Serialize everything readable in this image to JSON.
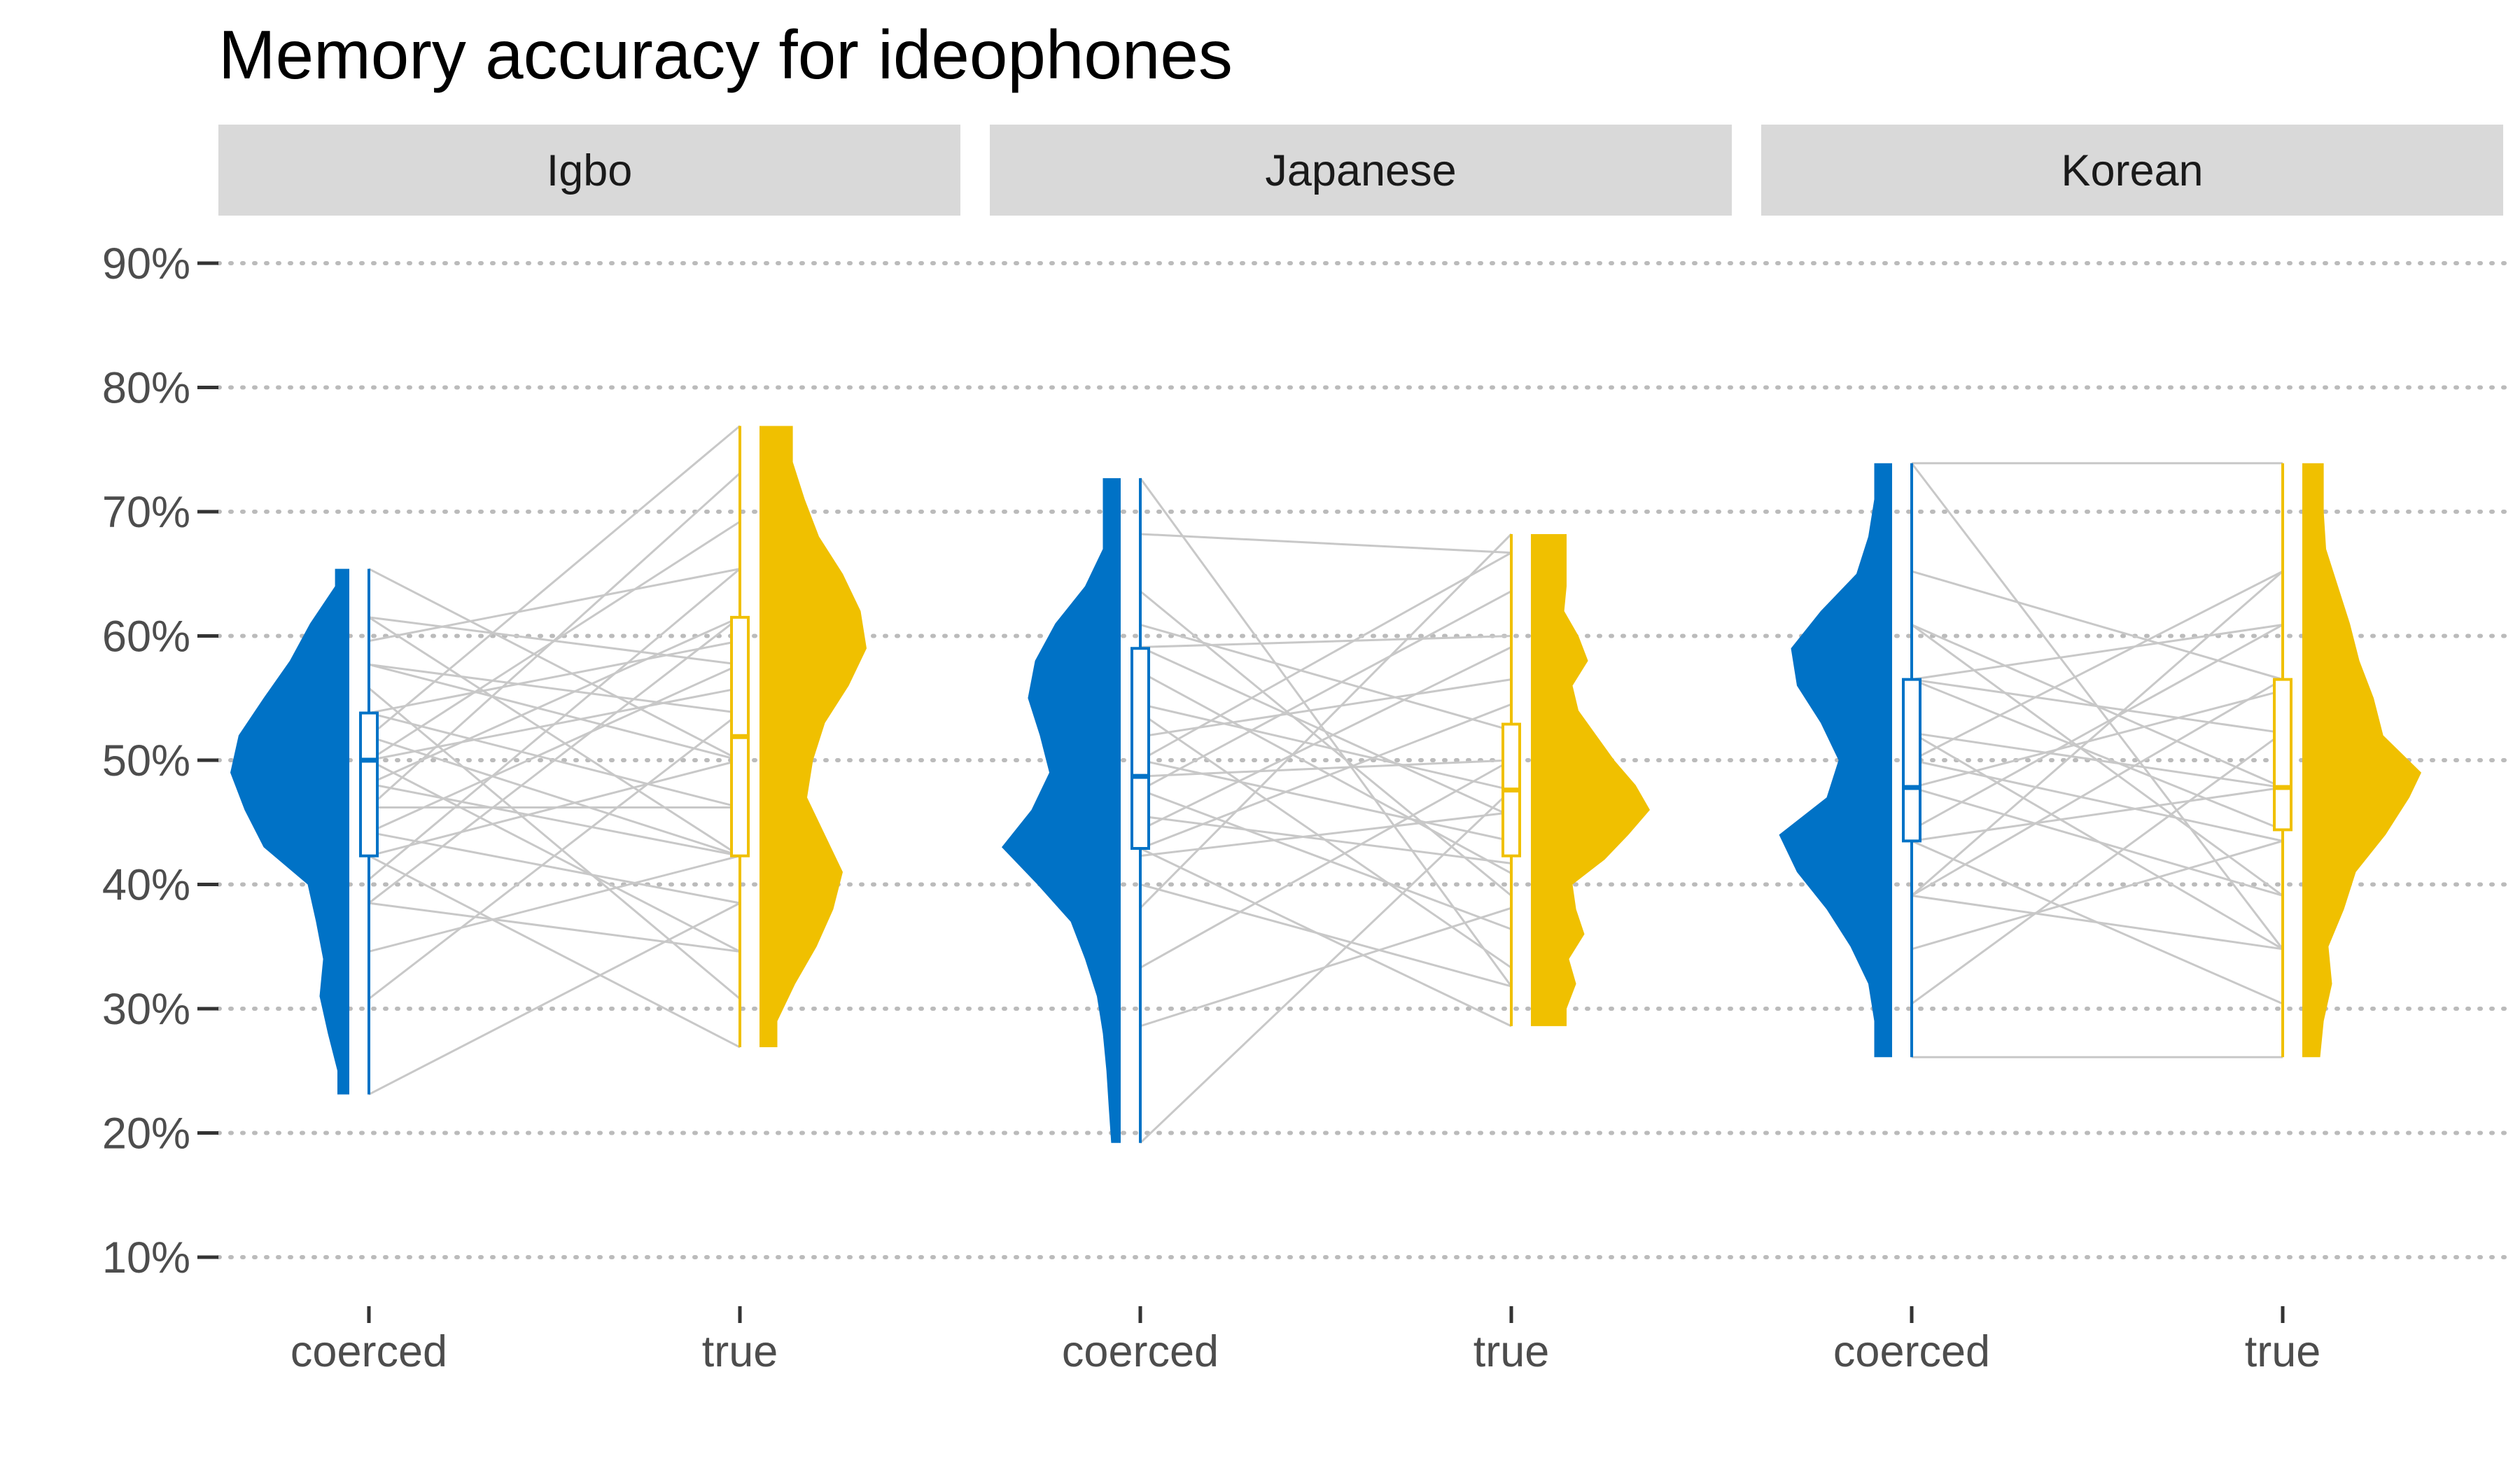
{
  "chart_data": {
    "type": "raincloud",
    "title": "Memory accuracy for ideophones",
    "xlabel": "",
    "ylabel": "",
    "ylim": [
      0.1,
      0.9
    ],
    "y_ticks": [
      0.1,
      0.2,
      0.3,
      0.4,
      0.5,
      0.6,
      0.7,
      0.8,
      0.9
    ],
    "y_tick_labels": [
      "10%",
      "20%",
      "30%",
      "40%",
      "50%",
      "60%",
      "70%",
      "80%",
      "90%"
    ],
    "grid": "horizontal dotted",
    "categories": [
      "coerced",
      "true"
    ],
    "colors": {
      "coerced": "#0072C6",
      "true": "#F0C000",
      "lines": "#c8c8c8",
      "strip": "#d9d9d9",
      "grid": "#bbbbbb"
    },
    "panels": [
      {
        "label": "Igbo",
        "coerced": {
          "min": 0.231,
          "q1": 0.423,
          "median": 0.5,
          "q3": 0.538,
          "max": 0.654,
          "density": [
            [
              0.231,
              0.1
            ],
            [
              0.25,
              0.1
            ],
            [
              0.28,
              0.18
            ],
            [
              0.31,
              0.25
            ],
            [
              0.34,
              0.22
            ],
            [
              0.37,
              0.28
            ],
            [
              0.4,
              0.35
            ],
            [
              0.43,
              0.72
            ],
            [
              0.46,
              0.88
            ],
            [
              0.49,
              1.0
            ],
            [
              0.52,
              0.93
            ],
            [
              0.55,
              0.72
            ],
            [
              0.58,
              0.5
            ],
            [
              0.61,
              0.33
            ],
            [
              0.64,
              0.12
            ],
            [
              0.654,
              0.12
            ]
          ]
        },
        "true": {
          "min": 0.269,
          "q1": 0.423,
          "median": 0.519,
          "q3": 0.615,
          "max": 0.769,
          "density": [
            [
              0.269,
              0.15
            ],
            [
              0.29,
              0.15
            ],
            [
              0.32,
              0.3
            ],
            [
              0.35,
              0.48
            ],
            [
              0.38,
              0.62
            ],
            [
              0.41,
              0.7
            ],
            [
              0.44,
              0.55
            ],
            [
              0.47,
              0.4
            ],
            [
              0.5,
              0.45
            ],
            [
              0.53,
              0.55
            ],
            [
              0.56,
              0.75
            ],
            [
              0.59,
              0.9
            ],
            [
              0.62,
              0.85
            ],
            [
              0.65,
              0.7
            ],
            [
              0.68,
              0.5
            ],
            [
              0.71,
              0.38
            ],
            [
              0.74,
              0.28
            ],
            [
              0.769,
              0.28
            ]
          ]
        },
        "pairs": [
          [
            0.231,
            0.385
          ],
          [
            0.308,
            0.538
          ],
          [
            0.346,
            0.423
          ],
          [
            0.385,
            0.615
          ],
          [
            0.385,
            0.346
          ],
          [
            0.404,
            0.654
          ],
          [
            0.423,
            0.5
          ],
          [
            0.423,
            0.269
          ],
          [
            0.442,
            0.577
          ],
          [
            0.442,
            0.385
          ],
          [
            0.462,
            0.731
          ],
          [
            0.462,
            0.462
          ],
          [
            0.481,
            0.423
          ],
          [
            0.481,
            0.615
          ],
          [
            0.5,
            0.692
          ],
          [
            0.5,
            0.346
          ],
          [
            0.5,
            0.558
          ],
          [
            0.519,
            0.423
          ],
          [
            0.519,
            0.769
          ],
          [
            0.538,
            0.462
          ],
          [
            0.538,
            0.596
          ],
          [
            0.558,
            0.308
          ],
          [
            0.577,
            0.538
          ],
          [
            0.577,
            0.5
          ],
          [
            0.596,
            0.654
          ],
          [
            0.615,
            0.423
          ],
          [
            0.615,
            0.577
          ],
          [
            0.654,
            0.5
          ]
        ]
      },
      {
        "label": "Japanese",
        "coerced": {
          "min": 0.192,
          "q1": 0.429,
          "median": 0.487,
          "q3": 0.59,
          "max": 0.727,
          "density": [
            [
              0.192,
              0.08
            ],
            [
              0.22,
              0.1
            ],
            [
              0.25,
              0.12
            ],
            [
              0.28,
              0.15
            ],
            [
              0.31,
              0.2
            ],
            [
              0.34,
              0.3
            ],
            [
              0.37,
              0.42
            ],
            [
              0.4,
              0.7
            ],
            [
              0.43,
              1.0
            ],
            [
              0.46,
              0.75
            ],
            [
              0.49,
              0.6
            ],
            [
              0.52,
              0.68
            ],
            [
              0.55,
              0.78
            ],
            [
              0.58,
              0.72
            ],
            [
              0.61,
              0.55
            ],
            [
              0.64,
              0.3
            ],
            [
              0.67,
              0.15
            ],
            [
              0.7,
              0.15
            ],
            [
              0.727,
              0.15
            ]
          ]
        },
        "true": {
          "min": 0.286,
          "q1": 0.423,
          "median": 0.476,
          "q3": 0.529,
          "max": 0.682,
          "density": [
            [
              0.286,
              0.3
            ],
            [
              0.3,
              0.3
            ],
            [
              0.32,
              0.38
            ],
            [
              0.34,
              0.32
            ],
            [
              0.36,
              0.45
            ],
            [
              0.38,
              0.38
            ],
            [
              0.4,
              0.35
            ],
            [
              0.42,
              0.62
            ],
            [
              0.44,
              0.82
            ],
            [
              0.46,
              1.0
            ],
            [
              0.48,
              0.88
            ],
            [
              0.5,
              0.7
            ],
            [
              0.52,
              0.55
            ],
            [
              0.54,
              0.4
            ],
            [
              0.56,
              0.35
            ],
            [
              0.58,
              0.48
            ],
            [
              0.6,
              0.4
            ],
            [
              0.62,
              0.28
            ],
            [
              0.64,
              0.3
            ],
            [
              0.66,
              0.3
            ],
            [
              0.682,
              0.3
            ]
          ]
        },
        "pairs": [
          [
            0.192,
            0.476
          ],
          [
            0.286,
            0.381
          ],
          [
            0.333,
            0.5
          ],
          [
            0.381,
            0.682
          ],
          [
            0.4,
            0.318
          ],
          [
            0.423,
            0.458
          ],
          [
            0.429,
            0.286
          ],
          [
            0.429,
            0.545
          ],
          [
            0.444,
            0.591
          ],
          [
            0.455,
            0.417
          ],
          [
            0.476,
            0.636
          ],
          [
            0.476,
            0.364
          ],
          [
            0.487,
            0.5
          ],
          [
            0.5,
            0.667
          ],
          [
            0.5,
            0.435
          ],
          [
            0.519,
            0.565
          ],
          [
            0.538,
            0.333
          ],
          [
            0.545,
            0.476
          ],
          [
            0.571,
            0.409
          ],
          [
            0.591,
            0.6
          ],
          [
            0.591,
            0.455
          ],
          [
            0.609,
            0.524
          ],
          [
            0.636,
            0.391
          ],
          [
            0.682,
            0.667
          ],
          [
            0.727,
            0.318
          ]
        ]
      },
      {
        "label": "Korean",
        "coerced": {
          "min": 0.261,
          "q1": 0.435,
          "median": 0.478,
          "q3": 0.565,
          "max": 0.739,
          "density": [
            [
              0.261,
              0.15
            ],
            [
              0.29,
              0.15
            ],
            [
              0.32,
              0.2
            ],
            [
              0.35,
              0.35
            ],
            [
              0.38,
              0.55
            ],
            [
              0.41,
              0.8
            ],
            [
              0.44,
              0.95
            ],
            [
              0.47,
              0.55
            ],
            [
              0.5,
              0.45
            ],
            [
              0.53,
              0.6
            ],
            [
              0.56,
              0.8
            ],
            [
              0.59,
              0.85
            ],
            [
              0.62,
              0.6
            ],
            [
              0.65,
              0.3
            ],
            [
              0.68,
              0.2
            ],
            [
              0.71,
              0.15
            ],
            [
              0.739,
              0.15
            ]
          ]
        },
        "true": {
          "min": 0.261,
          "q1": 0.444,
          "median": 0.478,
          "q3": 0.565,
          "max": 0.739,
          "density": [
            [
              0.261,
              0.15
            ],
            [
              0.29,
              0.18
            ],
            [
              0.32,
              0.25
            ],
            [
              0.35,
              0.22
            ],
            [
              0.38,
              0.35
            ],
            [
              0.41,
              0.45
            ],
            [
              0.44,
              0.7
            ],
            [
              0.47,
              0.9
            ],
            [
              0.49,
              1.0
            ],
            [
              0.52,
              0.68
            ],
            [
              0.55,
              0.6
            ],
            [
              0.58,
              0.48
            ],
            [
              0.61,
              0.4
            ],
            [
              0.64,
              0.3
            ],
            [
              0.67,
              0.2
            ],
            [
              0.7,
              0.18
            ],
            [
              0.739,
              0.18
            ]
          ]
        },
        "pairs": [
          [
            0.261,
            0.261
          ],
          [
            0.304,
            0.522
          ],
          [
            0.348,
            0.435
          ],
          [
            0.391,
            0.652
          ],
          [
            0.391,
            0.348
          ],
          [
            0.391,
            0.565
          ],
          [
            0.435,
            0.478
          ],
          [
            0.435,
            0.304
          ],
          [
            0.444,
            0.609
          ],
          [
            0.478,
            0.391
          ],
          [
            0.478,
            0.556
          ],
          [
            0.5,
            0.652
          ],
          [
            0.5,
            0.435
          ],
          [
            0.522,
            0.478
          ],
          [
            0.522,
            0.348
          ],
          [
            0.565,
            0.609
          ],
          [
            0.565,
            0.444
          ],
          [
            0.565,
            0.522
          ],
          [
            0.609,
            0.391
          ],
          [
            0.609,
            0.478
          ],
          [
            0.652,
            0.565
          ],
          [
            0.739,
            0.348
          ],
          [
            0.739,
            0.739
          ]
        ]
      }
    ]
  }
}
